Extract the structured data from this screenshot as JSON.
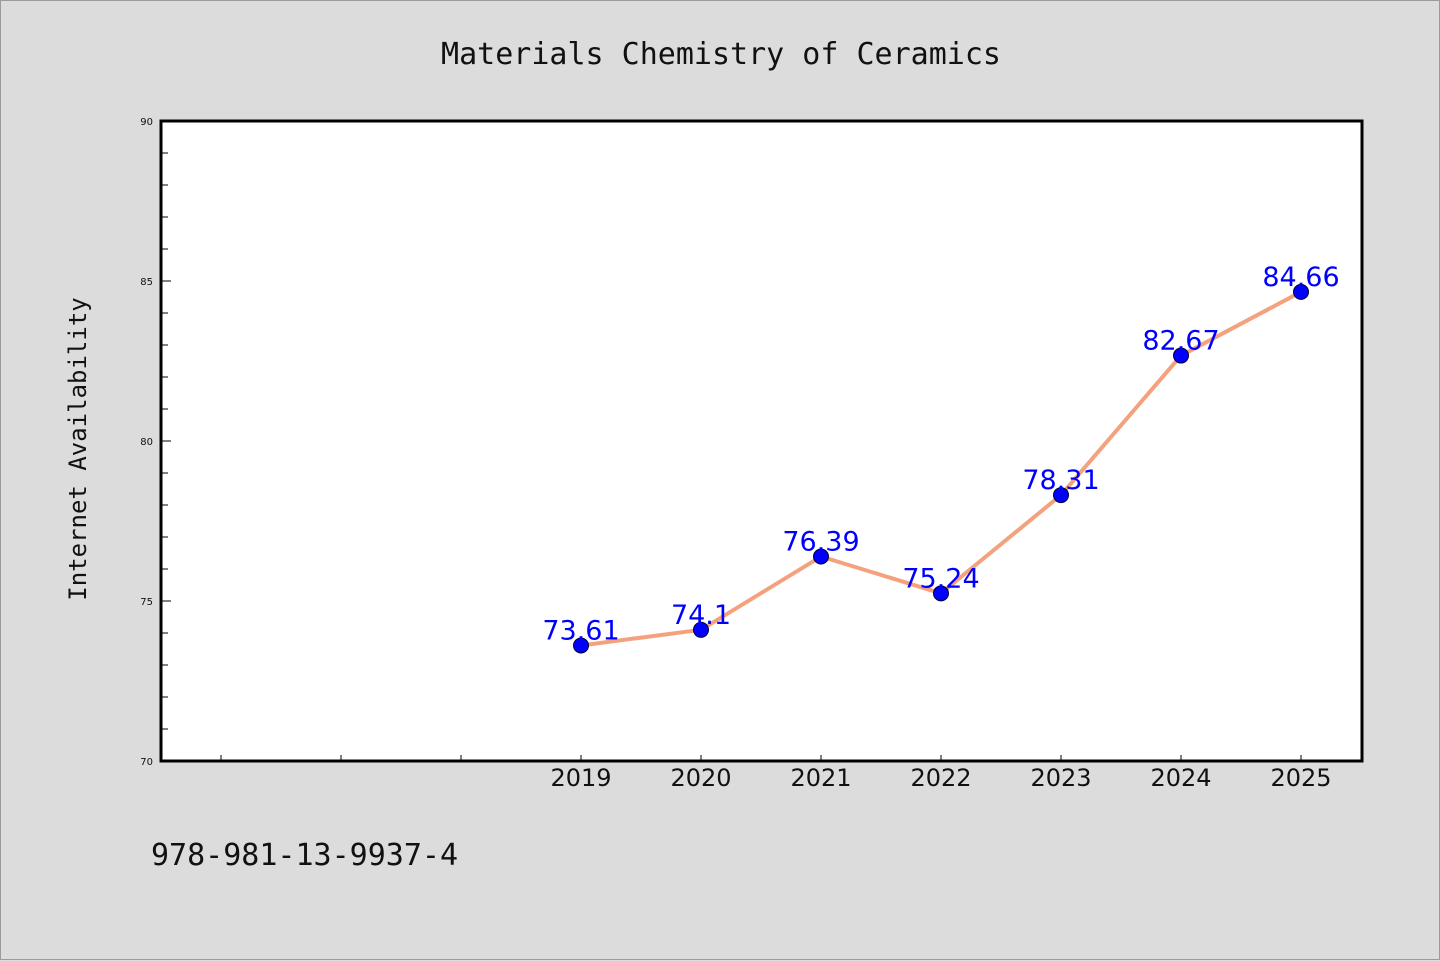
{
  "footer_id": "978-981-13-9937-4",
  "colors": {
    "background": "#dcdcdc",
    "plot_background": "#ffffff",
    "line": "#f4a27e",
    "marker": "#0000ff",
    "data_label": "#0000ff"
  },
  "chart_data": {
    "type": "line",
    "title": "Materials Chemistry of Ceramics",
    "xlabel": "",
    "ylabel": "Internet Availability",
    "categories": [
      "2019",
      "2020",
      "2021",
      "2022",
      "2023",
      "2024",
      "2025"
    ],
    "x_slots_before_data": 3,
    "series": [
      {
        "values": [
          73.61,
          74.1,
          76.39,
          75.24,
          78.31,
          82.67,
          84.66
        ]
      }
    ],
    "data_labels": [
      "73.61",
      "74.1",
      "76.39",
      "75.24",
      "78.31",
      "82.67",
      "84.66"
    ],
    "ylim": [
      70,
      90
    ],
    "yticks": [
      70,
      75,
      80,
      85,
      90
    ],
    "ytick_labels": [
      "70",
      "75",
      "80",
      "85",
      "90"
    ],
    "y_minor_step": 1,
    "grid": false,
    "legend": "none"
  }
}
